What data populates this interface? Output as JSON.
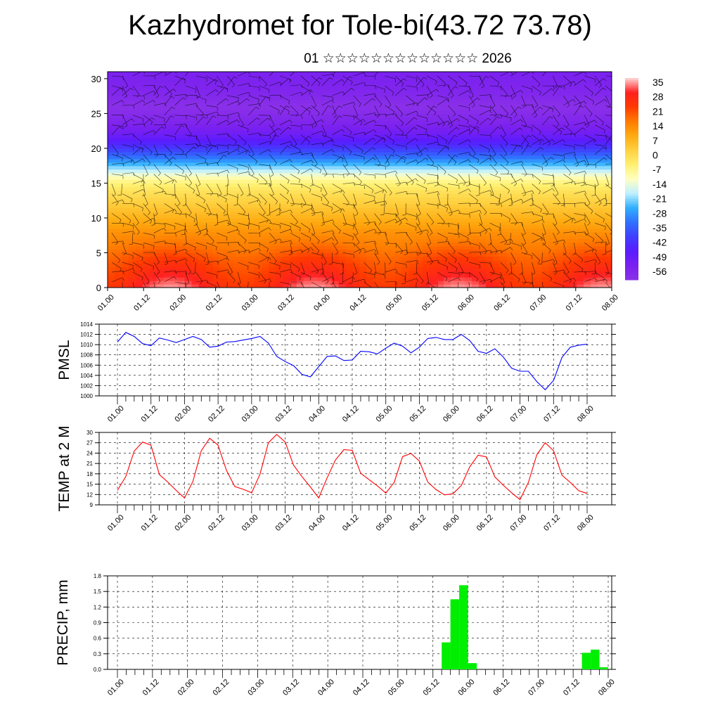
{
  "page": {
    "title": "Kazhydromet for Tole-bi(43.72 73.78)",
    "subtitle": "01 ☆☆☆☆☆☆☆☆☆☆☆☆☆ 2026"
  },
  "time_ticks": [
    "01.00",
    "01.12",
    "02.00",
    "02.12",
    "03.00",
    "03.12",
    "04.00",
    "04.12",
    "05.00",
    "05.12",
    "06.00",
    "06.12",
    "07.00",
    "07.12",
    "08.00"
  ],
  "colors": {
    "pmsl_line": "#0000ff",
    "temp_line": "#ff0000",
    "precip_bar": "#00ee00",
    "grid": "#000000"
  },
  "chart_data": [
    {
      "type": "heatmap",
      "id": "upper-air-temperature-wind",
      "x": [
        "01.00",
        "01.12",
        "02.00",
        "02.12",
        "03.00",
        "03.12",
        "04.00",
        "04.12",
        "05.00",
        "05.12",
        "06.00",
        "06.12",
        "07.00",
        "07.12",
        "08.00"
      ],
      "ylim": [
        0,
        31
      ],
      "yticks": [
        "0",
        "5",
        "10",
        "15",
        "20",
        "25",
        "30"
      ],
      "profile_levels": [
        0,
        2,
        4,
        6,
        8,
        10,
        12,
        14,
        15.5,
        17,
        19,
        20.5,
        22,
        24,
        26,
        28,
        31
      ],
      "profile_temps": [
        30,
        26,
        22,
        17,
        13,
        8,
        3,
        -2,
        -8,
        -20,
        -35,
        -45,
        -52,
        -58,
        -62,
        -58,
        -55
      ],
      "colorbar": {
        "labels": [
          "35",
          "28",
          "21",
          "14",
          "7",
          "0",
          "-7",
          "-14",
          "-21",
          "-28",
          "-35",
          "-42",
          "-49",
          "-56"
        ],
        "stops": [
          "#ffd6d6",
          "#ff2020",
          "#ff3a00",
          "#ff7a00",
          "#ffaa10",
          "#ffd040",
          "#fff070",
          "#ffffc0",
          "#c0f0ff",
          "#30b0ff",
          "#3070ff",
          "#4040ff",
          "#5a1cff",
          "#7a20f0",
          "#8a30e8"
        ]
      },
      "wind_barbs": "overlaid"
    },
    {
      "type": "line",
      "id": "pmsl",
      "ylabel": "PMSL",
      "ylim": [
        1000,
        1014
      ],
      "yticks": [
        "1000",
        "1002",
        "1004",
        "1006",
        "1008",
        "1010",
        "1012",
        "1014"
      ],
      "x_hours_step": 3,
      "series": [
        {
          "values": [
            1010.5,
            1012.4,
            1011.6,
            1010.2,
            1009.8,
            1011.3,
            1010.9,
            1010.4,
            1011.0,
            1011.6,
            1011.0,
            1009.5,
            1009.7,
            1010.5,
            1010.6,
            1010.9,
            1011.2,
            1011.6,
            1010.3,
            1007.7,
            1006.7,
            1005.9,
            1004.2,
            1003.7,
            1005.7,
            1007.7,
            1007.8,
            1006.9,
            1007.0,
            1008.7,
            1008.6,
            1008.2,
            1009.3,
            1010.3,
            1009.7,
            1008.4,
            1009.5,
            1011.2,
            1011.4,
            1011.0,
            1011.0,
            1012.0,
            1010.8,
            1008.7,
            1008.3,
            1009.2,
            1007.6,
            1005.4,
            1004.8,
            1004.8,
            1002.8,
            1001.2,
            1003.0,
            1007.5,
            1009.5,
            1009.9,
            1010.1
          ]
        }
      ]
    },
    {
      "type": "line",
      "id": "temp-2m",
      "ylabel": "TEMP at 2 M",
      "ylim": [
        9,
        30
      ],
      "yticks": [
        "9",
        "12",
        "15",
        "18",
        "21",
        "24",
        "27",
        "30"
      ],
      "x_hours_step": 3,
      "series": [
        {
          "values": [
            13.2,
            17.2,
            24.6,
            27.2,
            26.3,
            17.8,
            15.6,
            13.2,
            11.0,
            15.8,
            24.7,
            28.3,
            26.3,
            19.0,
            14.3,
            13.5,
            12.5,
            17.9,
            27.0,
            29.4,
            27.2,
            20.5,
            17.2,
            14.2,
            11.0,
            16.8,
            22.0,
            25.0,
            24.8,
            18.2,
            16.3,
            14.5,
            12.4,
            15.5,
            23.0,
            23.9,
            21.7,
            15.6,
            13.4,
            11.9,
            12.2,
            14.6,
            20.0,
            23.4,
            22.9,
            17.1,
            14.7,
            12.5,
            10.5,
            15.5,
            23.5,
            27.0,
            24.7,
            17.6,
            15.5,
            13.1,
            12.3
          ]
        }
      ]
    },
    {
      "type": "bar",
      "id": "precip",
      "ylabel": "PRECIP, mm",
      "ylim": [
        0,
        1.8
      ],
      "yticks": [
        "0.0",
        "0.3",
        "0.6",
        "0.9",
        "1.2",
        "1.5",
        "1.8"
      ],
      "x_hours_step": 3,
      "values": [
        0,
        0,
        0,
        0,
        0,
        0,
        0,
        0,
        0,
        0,
        0,
        0,
        0,
        0,
        0,
        0,
        0,
        0,
        0,
        0,
        0,
        0,
        0,
        0,
        0,
        0,
        0,
        0,
        0,
        0,
        0,
        0,
        0,
        0,
        0,
        0,
        0,
        0.52,
        1.35,
        1.62,
        0.12,
        0,
        0,
        0,
        0,
        0,
        0,
        0,
        0,
        0,
        0,
        0,
        0,
        0.32,
        0.38,
        0.04
      ]
    }
  ]
}
